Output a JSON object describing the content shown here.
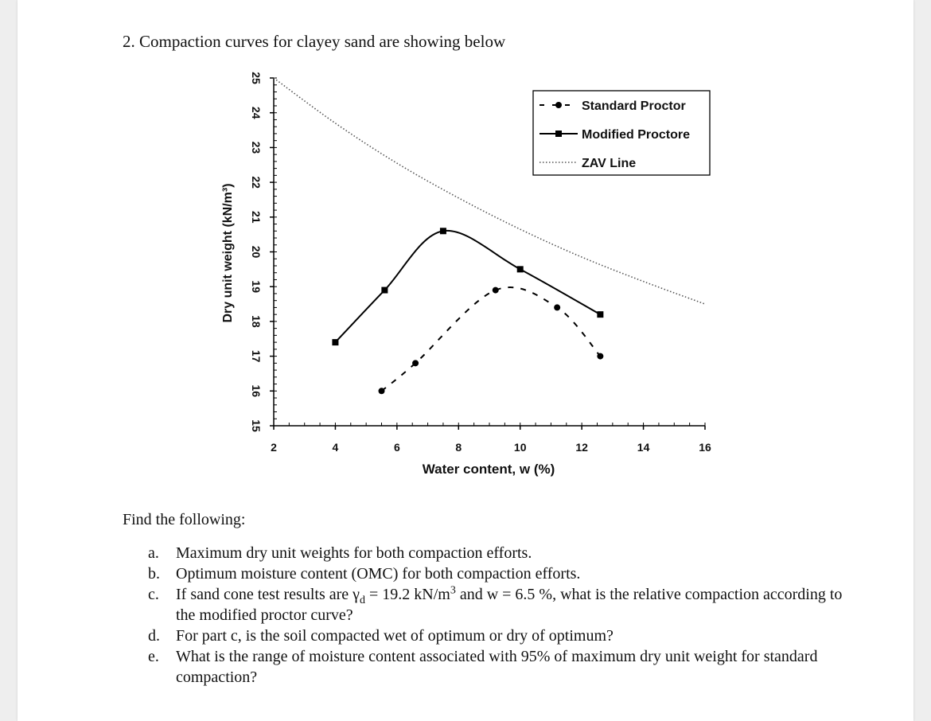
{
  "question": {
    "title": "2. Compaction curves for clayey sand are showing below"
  },
  "chart_data": {
    "type": "line",
    "title": "",
    "xlabel": "Water content, w (%)",
    "ylabel": "Dry unit weight (kN/m³)",
    "xlim": [
      2,
      16
    ],
    "ylim": [
      15,
      25
    ],
    "xticks": [
      2,
      4,
      6,
      8,
      10,
      12,
      14,
      16
    ],
    "yticks": [
      15,
      16,
      17,
      18,
      19,
      20,
      21,
      22,
      23,
      24,
      25
    ],
    "grid": false,
    "legend_position": "top-right",
    "series": [
      {
        "name": "Standard Proctor",
        "style": "dashed",
        "marker": "circle",
        "color": "#000000",
        "x": [
          5.5,
          6.6,
          9.2,
          11.2,
          12.6
        ],
        "y": [
          16.0,
          16.8,
          18.9,
          18.4,
          17.0
        ]
      },
      {
        "name": "Modified Proctore",
        "style": "solid",
        "marker": "square",
        "color": "#000000",
        "x": [
          4.0,
          5.6,
          7.5,
          10.0,
          12.6
        ],
        "y": [
          17.4,
          18.9,
          20.6,
          19.5,
          18.2
        ]
      },
      {
        "name": "ZAV Line",
        "style": "dotted",
        "marker": "none",
        "color": "#555555",
        "x": [
          2.0,
          4.0,
          6.0,
          8.0,
          10.0,
          12.0,
          14.0,
          16.0
        ],
        "y": [
          25.0,
          23.7,
          22.55,
          21.55,
          20.65,
          19.85,
          19.15,
          18.5
        ]
      }
    ]
  },
  "find": {
    "heading": "Find the following:",
    "items": [
      {
        "letter": "a.",
        "text": "Maximum dry unit weights for both compaction efforts."
      },
      {
        "letter": "b.",
        "text": "Optimum moisture content (OMC) for both compaction efforts."
      },
      {
        "letter": "c.",
        "pre": "If sand cone test results are γ",
        "sub": "d",
        "mid": " = 19.2 kN/m",
        "sup": "3",
        "post": " and w = 6.5 %, what is the relative compaction according to the modified proctor curve?"
      },
      {
        "letter": "d.",
        "text": "For part c, is the soil compacted wet of optimum or dry of optimum?"
      },
      {
        "letter": "e.",
        "text": "What is the range of moisture content associated with 95% of maximum dry unit weight for standard compaction?"
      }
    ]
  }
}
